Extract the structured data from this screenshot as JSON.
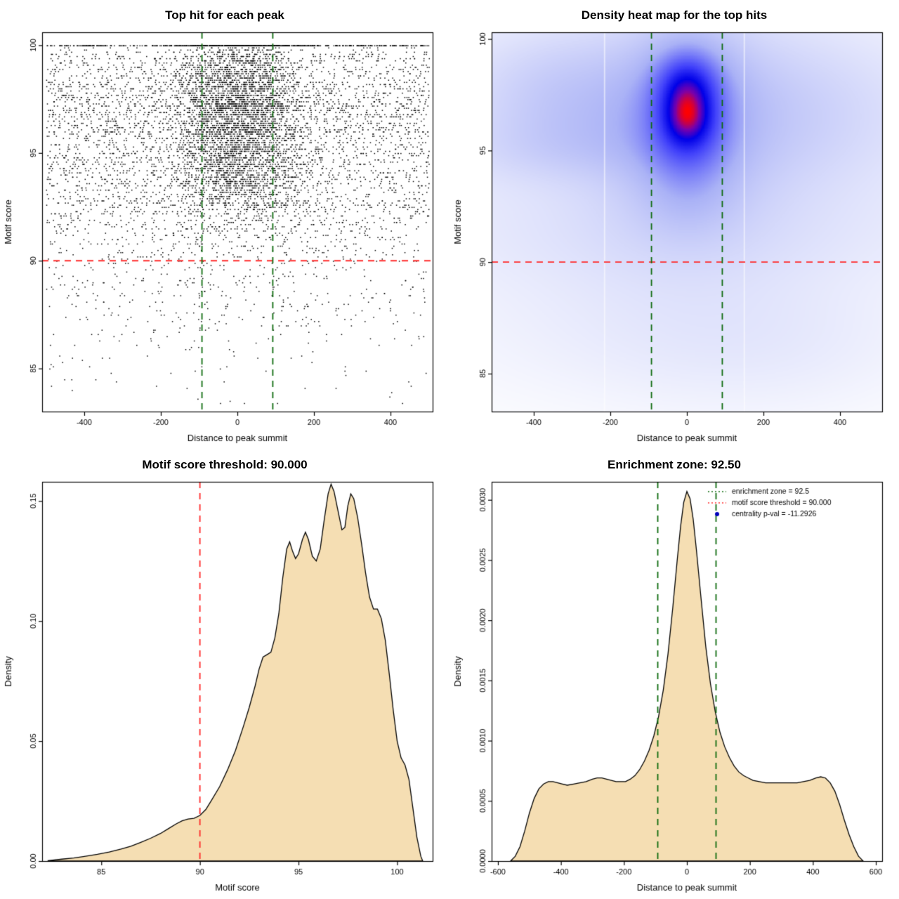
{
  "figure": {
    "background": "#ffffff",
    "colors": {
      "threshold_red": "#ff2a2a",
      "zone_green": "#0e6b0e",
      "fill_wheat": "#f5deb3",
      "point_black": "#000000",
      "pval_blue": "#0000bb"
    }
  },
  "chart_data": [
    {
      "type": "scatter",
      "title": "Top hit for each peak",
      "xlabel": "Distance to peak summit",
      "ylabel": "Motif score",
      "xlim": [
        -510,
        510
      ],
      "ylim": [
        83.0,
        100.6
      ],
      "xtick_vals": [
        -400,
        -200,
        0,
        200,
        400
      ],
      "xtick_labels": [
        "-400",
        "-200",
        "0",
        "200",
        "400"
      ],
      "ytick_vals": [
        85,
        90,
        95,
        100
      ],
      "ytick_labels": [
        "85",
        "90",
        "95",
        "100"
      ],
      "grid": false,
      "threshold_line_y": 90,
      "zone_lines_x": [
        -92.5,
        92.5
      ],
      "points": {
        "seed": 20240,
        "n": 9000,
        "p_top": 0.05,
        "x_center_sd_high": 85,
        "x_center_sd_mid": 115,
        "x_center_sd_low": 150,
        "p_center_high": 0.52,
        "p_center_mid": 0.3,
        "p_center_low": 0.12,
        "quantize": 0.1,
        "x_range": [
          -500,
          500
        ]
      }
    },
    {
      "type": "heatmap",
      "title": "Density heat map for the top hits",
      "xlabel": "Distance to peak summit",
      "ylabel": "Motif score",
      "xlim": [
        -510,
        510
      ],
      "ylim": [
        83.3,
        100.3
      ],
      "xtick_vals": [
        -400,
        -200,
        0,
        200,
        400
      ],
      "xtick_labels": [
        "-400",
        "-200",
        "0",
        "200",
        "400"
      ],
      "ytick_vals": [
        85,
        90,
        95,
        100
      ],
      "ytick_labels": [
        "85",
        "90",
        "95",
        "100"
      ],
      "grid": false,
      "threshold_line_y": 90,
      "zone_lines_x": [
        -92.5,
        92.5
      ],
      "gamma": 0.6,
      "colormap": [
        [
          0,
          "#ffffff"
        ],
        [
          0.42,
          "#aab2f6"
        ],
        [
          0.7,
          "#4040fa"
        ],
        [
          0.84,
          "#0000e8"
        ],
        [
          0.93,
          "#7a00aa"
        ],
        [
          1,
          "#ff0000"
        ]
      ],
      "white_lines_x": [
        -215,
        150
      ],
      "components": [
        {
          "cx": 0,
          "cy": 97.8,
          "sx": 52,
          "sy": 1.05,
          "w": 1.0
        },
        {
          "cx": 0,
          "cy": 96.35,
          "sx": 46,
          "sy": 0.85,
          "w": 0.82
        },
        {
          "cx": 0,
          "cy": 97.1,
          "sx": 95,
          "sy": 2.1,
          "w": 0.5
        },
        {
          "cx": 0,
          "cy": 95.1,
          "sx": 70,
          "sy": 1.1,
          "w": 0.33
        },
        {
          "cx": 0,
          "cy": 95.8,
          "sx": 160,
          "sy": 3.2,
          "w": 0.26
        },
        {
          "cx": 0,
          "cy": 93.0,
          "sx": 80,
          "sy": 1.2,
          "w": 0.16
        },
        {
          "cx": -270,
          "cy": 96.6,
          "sx": 170,
          "sy": 1.3,
          "w": 0.16
        },
        {
          "cx": -300,
          "cy": 95.1,
          "sx": 190,
          "sy": 1.0,
          "w": 0.13
        },
        {
          "cx": -310,
          "cy": 98.4,
          "sx": 160,
          "sy": 1.4,
          "w": 0.14
        },
        {
          "cx": 260,
          "cy": 96.8,
          "sx": 190,
          "sy": 2.2,
          "w": 0.13
        },
        {
          "cx": 0,
          "cy": 96.2,
          "sx": 470,
          "sy": 3.4,
          "w": 0.16
        },
        {
          "cx": 0,
          "cy": 91.2,
          "sx": 420,
          "sy": 1.6,
          "w": 0.07
        },
        {
          "cx": -80,
          "cy": 87.8,
          "sx": 360,
          "sy": 2.4,
          "w": 0.055
        },
        {
          "cx": 180,
          "cy": 86.5,
          "sx": 260,
          "sy": 2.0,
          "w": 0.05
        }
      ]
    },
    {
      "type": "area",
      "title": "Motif score threshold: 90.000",
      "xlabel": "Motif score",
      "ylabel": "Density",
      "xlim": [
        82.0,
        101.8
      ],
      "ylim": [
        0,
        0.158
      ],
      "xtick_vals": [
        85,
        90,
        95,
        100
      ],
      "xtick_labels": [
        "85",
        "90",
        "95",
        "100"
      ],
      "ytick_vals": [
        0,
        0.05,
        0.1,
        0.15
      ],
      "ytick_labels": [
        "0.00",
        "0.05",
        "0.10",
        "0.15"
      ],
      "grid": false,
      "threshold_line_x": 90,
      "curve": [
        [
          82.3,
          0.0002
        ],
        [
          83.0,
          0.0008
        ],
        [
          83.6,
          0.0013
        ],
        [
          84.2,
          0.002
        ],
        [
          84.8,
          0.0028
        ],
        [
          85.4,
          0.0038
        ],
        [
          86.0,
          0.005
        ],
        [
          86.5,
          0.0062
        ],
        [
          87.0,
          0.0078
        ],
        [
          87.5,
          0.0095
        ],
        [
          88.0,
          0.0115
        ],
        [
          88.4,
          0.0135
        ],
        [
          88.8,
          0.0155
        ],
        [
          89.1,
          0.0168
        ],
        [
          89.4,
          0.0175
        ],
        [
          89.7,
          0.0178
        ],
        [
          90.0,
          0.019
        ],
        [
          90.3,
          0.0215
        ],
        [
          90.6,
          0.0255
        ],
        [
          91.0,
          0.031
        ],
        [
          91.4,
          0.038
        ],
        [
          91.8,
          0.046
        ],
        [
          92.2,
          0.056
        ],
        [
          92.5,
          0.064
        ],
        [
          92.8,
          0.073
        ],
        [
          93.0,
          0.08
        ],
        [
          93.2,
          0.085
        ],
        [
          93.4,
          0.086
        ],
        [
          93.6,
          0.087
        ],
        [
          93.8,
          0.093
        ],
        [
          94.0,
          0.103
        ],
        [
          94.2,
          0.118
        ],
        [
          94.4,
          0.13
        ],
        [
          94.55,
          0.133
        ],
        [
          94.7,
          0.129
        ],
        [
          94.85,
          0.126
        ],
        [
          95.0,
          0.128
        ],
        [
          95.2,
          0.134
        ],
        [
          95.35,
          0.137
        ],
        [
          95.5,
          0.134
        ],
        [
          95.7,
          0.127
        ],
        [
          95.9,
          0.125
        ],
        [
          96.1,
          0.13
        ],
        [
          96.3,
          0.142
        ],
        [
          96.5,
          0.153
        ],
        [
          96.65,
          0.157
        ],
        [
          96.8,
          0.154
        ],
        [
          97.0,
          0.146
        ],
        [
          97.2,
          0.138
        ],
        [
          97.35,
          0.139
        ],
        [
          97.5,
          0.148
        ],
        [
          97.65,
          0.153
        ],
        [
          97.8,
          0.151
        ],
        [
          98.0,
          0.143
        ],
        [
          98.2,
          0.132
        ],
        [
          98.4,
          0.12
        ],
        [
          98.6,
          0.11
        ],
        [
          98.8,
          0.105
        ],
        [
          99.0,
          0.105
        ],
        [
          99.2,
          0.101
        ],
        [
          99.4,
          0.092
        ],
        [
          99.6,
          0.078
        ],
        [
          99.8,
          0.063
        ],
        [
          100.0,
          0.05
        ],
        [
          100.2,
          0.043
        ],
        [
          100.4,
          0.04
        ],
        [
          100.6,
          0.034
        ],
        [
          100.8,
          0.022
        ],
        [
          101.0,
          0.01
        ],
        [
          101.2,
          0.002
        ],
        [
          101.3,
          0
        ]
      ]
    },
    {
      "type": "area",
      "title": "Enrichment zone: 92.50",
      "xlabel": "Distance to peak summit",
      "ylabel": "Density",
      "xlim": [
        -620,
        620
      ],
      "ylim": [
        0,
        0.00315
      ],
      "xtick_vals": [
        -600,
        -400,
        -200,
        0,
        200,
        400,
        600
      ],
      "xtick_labels": [
        "-600",
        "-400",
        "-200",
        "0",
        "200",
        "400",
        "600"
      ],
      "ytick_vals": [
        0,
        0.0005,
        0.001,
        0.0015,
        0.002,
        0.0025,
        0.003
      ],
      "ytick_labels": [
        "0.0000",
        "0.0005",
        "0.0010",
        "0.0015",
        "0.0020",
        "0.0025",
        "0.0030"
      ],
      "grid": false,
      "zone_lines_x": [
        -92.5,
        92.5
      ],
      "legend": [
        {
          "label": "enrichment zone = 92.5",
          "kind": "line",
          "color": "#0e6b0e"
        },
        {
          "label": "motif score threshold = 90.000",
          "kind": "line",
          "color": "#ff2a2a"
        },
        {
          "label": "centrality p-val = -11.2926",
          "kind": "point",
          "color": "#0000bb"
        }
      ],
      "curve": [
        [
          -560,
          0
        ],
        [
          -545,
          4e-05
        ],
        [
          -530,
          0.00012
        ],
        [
          -515,
          0.00025
        ],
        [
          -500,
          0.0004
        ],
        [
          -485,
          0.00052
        ],
        [
          -470,
          0.0006
        ],
        [
          -455,
          0.00064
        ],
        [
          -440,
          0.00066
        ],
        [
          -425,
          0.00066
        ],
        [
          -410,
          0.00065
        ],
        [
          -395,
          0.00064
        ],
        [
          -380,
          0.00063
        ],
        [
          -360,
          0.00064
        ],
        [
          -340,
          0.00065
        ],
        [
          -320,
          0.00066
        ],
        [
          -300,
          0.00068
        ],
        [
          -285,
          0.00069
        ],
        [
          -270,
          0.00069
        ],
        [
          -255,
          0.00068
        ],
        [
          -240,
          0.00067
        ],
        [
          -225,
          0.00066
        ],
        [
          -210,
          0.00066
        ],
        [
          -195,
          0.00066
        ],
        [
          -180,
          0.00068
        ],
        [
          -165,
          0.00071
        ],
        [
          -150,
          0.00076
        ],
        [
          -135,
          0.00083
        ],
        [
          -120,
          0.00092
        ],
        [
          -105,
          0.00104
        ],
        [
          -90,
          0.0012
        ],
        [
          -75,
          0.00142
        ],
        [
          -60,
          0.00172
        ],
        [
          -45,
          0.0021
        ],
        [
          -30,
          0.00252
        ],
        [
          -20,
          0.00278
        ],
        [
          -10,
          0.00298
        ],
        [
          0,
          0.00307
        ],
        [
          10,
          0.00301
        ],
        [
          20,
          0.00284
        ],
        [
          30,
          0.00259
        ],
        [
          45,
          0.00218
        ],
        [
          60,
          0.00178
        ],
        [
          75,
          0.00147
        ],
        [
          90,
          0.00124
        ],
        [
          105,
          0.00107
        ],
        [
          120,
          0.00095
        ],
        [
          135,
          0.00086
        ],
        [
          150,
          0.00079
        ],
        [
          165,
          0.00074
        ],
        [
          180,
          0.00071
        ],
        [
          195,
          0.00069
        ],
        [
          210,
          0.00067
        ],
        [
          230,
          0.00066
        ],
        [
          250,
          0.00065
        ],
        [
          270,
          0.00065
        ],
        [
          290,
          0.00065
        ],
        [
          310,
          0.00065
        ],
        [
          330,
          0.00065
        ],
        [
          350,
          0.00065
        ],
        [
          370,
          0.00066
        ],
        [
          390,
          0.00067
        ],
        [
          410,
          0.00069
        ],
        [
          425,
          0.0007
        ],
        [
          440,
          0.00069
        ],
        [
          455,
          0.00065
        ],
        [
          470,
          0.00058
        ],
        [
          485,
          0.00047
        ],
        [
          500,
          0.00034
        ],
        [
          515,
          0.00022
        ],
        [
          530,
          0.00012
        ],
        [
          545,
          4e-05
        ],
        [
          560,
          0
        ]
      ]
    }
  ]
}
